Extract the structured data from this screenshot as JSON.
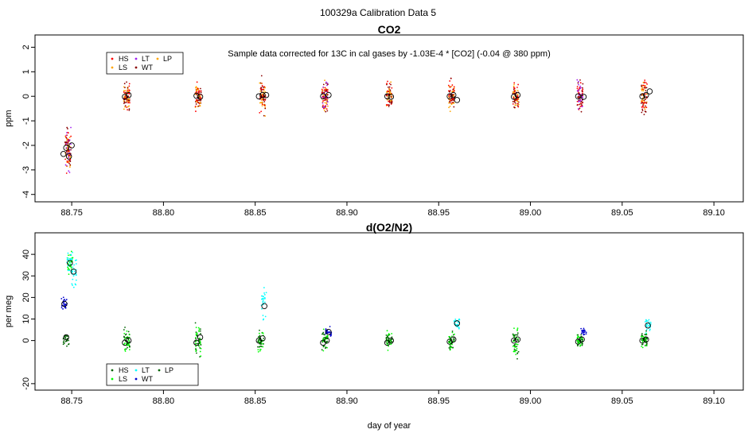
{
  "figure": {
    "suptitle": "100329a   Calibration Data 5",
    "xlabel": "day of year"
  },
  "chart_data": [
    {
      "type": "scatter",
      "title": "CO2",
      "ylabel": "ppm",
      "xlabel": "",
      "xlim": [
        88.73,
        89.116
      ],
      "ylim": [
        -4.3,
        2.5
      ],
      "xticks": [
        88.75,
        88.8,
        88.85,
        88.9,
        88.95,
        89.0,
        89.05,
        89.1
      ],
      "xtick_labels": [
        "88.75",
        "88.80",
        "88.85",
        "88.90",
        "88.95",
        "89.00",
        "89.05",
        "89.10"
      ],
      "yticks": [
        -4,
        -3,
        -2,
        -1,
        0,
        1,
        2
      ],
      "ytick_labels": [
        "-4",
        "-3",
        "-2",
        "-1",
        "0",
        "1",
        "2"
      ],
      "annotation": "Sample data corrected for 13C in cal gases by -1.03E-4 * [CO2] (-0.04 @ 380 ppm)",
      "legend": {
        "position": "top-left",
        "entries": [
          {
            "label": "HS",
            "color": "#ff0000"
          },
          {
            "label": "LT",
            "color": "#a020f0"
          },
          {
            "label": "LP",
            "color": "#ffa500"
          },
          {
            "label": "LS",
            "color": "#ffa500"
          },
          {
            "label": "WT",
            "color": "#8b0000"
          }
        ]
      },
      "clusters": [
        {
          "x": 88.748,
          "center": -2.2,
          "spread": 0.9,
          "colors": [
            "#a020f0",
            "#ff0000",
            "#ffa500",
            "#8b0000"
          ]
        },
        {
          "x": 88.78,
          "center": 0.0,
          "spread": 0.55,
          "colors": [
            "#ffa500",
            "#ff0000",
            "#8b0000"
          ]
        },
        {
          "x": 88.819,
          "center": 0.0,
          "spread": 0.6,
          "colors": [
            "#ff0000",
            "#ffa500",
            "#8b0000"
          ]
        },
        {
          "x": 88.854,
          "center": 0.0,
          "spread": 0.7,
          "colors": [
            "#ffa500",
            "#ff0000",
            "#8b0000"
          ]
        },
        {
          "x": 88.888,
          "center": 0.0,
          "spread": 0.65,
          "colors": [
            "#ff0000",
            "#a020f0",
            "#ffa500",
            "#8b0000"
          ]
        },
        {
          "x": 88.923,
          "center": 0.0,
          "spread": 0.55,
          "colors": [
            "#ff0000",
            "#ffa500",
            "#8b0000"
          ]
        },
        {
          "x": 88.957,
          "center": 0.0,
          "spread": 0.65,
          "colors": [
            "#ff0000",
            "#ffa500",
            "#8b0000"
          ]
        },
        {
          "x": 88.992,
          "center": 0.0,
          "spread": 0.55,
          "colors": [
            "#ff0000",
            "#ffa500",
            "#8b0000"
          ]
        },
        {
          "x": 89.027,
          "center": 0.0,
          "spread": 0.6,
          "colors": [
            "#ff0000",
            "#a020f0",
            "#8b0000"
          ]
        },
        {
          "x": 89.062,
          "center": 0.0,
          "spread": 0.7,
          "colors": [
            "#ffa500",
            "#ff0000",
            "#8b0000"
          ]
        }
      ],
      "means": [
        {
          "x": 88.7455,
          "y": -2.35
        },
        {
          "x": 88.747,
          "y": -2.1
        },
        {
          "x": 88.7485,
          "y": -2.45
        },
        {
          "x": 88.75,
          "y": -2.0
        },
        {
          "x": 88.779,
          "y": -0.02
        },
        {
          "x": 88.781,
          "y": 0.05
        },
        {
          "x": 88.818,
          "y": 0.02
        },
        {
          "x": 88.82,
          "y": -0.02
        },
        {
          "x": 88.852,
          "y": 0.0
        },
        {
          "x": 88.854,
          "y": 0.05
        },
        {
          "x": 88.856,
          "y": 0.05
        },
        {
          "x": 88.887,
          "y": 0.0
        },
        {
          "x": 88.89,
          "y": 0.05
        },
        {
          "x": 88.922,
          "y": 0.0
        },
        {
          "x": 88.924,
          "y": -0.02
        },
        {
          "x": 88.956,
          "y": 0.0
        },
        {
          "x": 88.958,
          "y": 0.05
        },
        {
          "x": 88.96,
          "y": -0.15
        },
        {
          "x": 88.991,
          "y": -0.02
        },
        {
          "x": 88.993,
          "y": 0.05
        },
        {
          "x": 89.026,
          "y": 0.0
        },
        {
          "x": 89.029,
          "y": -0.02
        },
        {
          "x": 89.061,
          "y": 0.0
        },
        {
          "x": 89.063,
          "y": 0.05
        },
        {
          "x": 89.065,
          "y": 0.2
        }
      ]
    },
    {
      "type": "scatter",
      "title": "d(O2/N2)",
      "ylabel": "per meg",
      "xlabel": "day of year",
      "xlim": [
        88.73,
        89.116
      ],
      "ylim": [
        -23,
        50
      ],
      "xticks": [
        88.75,
        88.8,
        88.85,
        88.9,
        88.95,
        89.0,
        89.05,
        89.1
      ],
      "xtick_labels": [
        "88.75",
        "88.80",
        "88.85",
        "88.90",
        "88.95",
        "89.00",
        "89.05",
        "89.10"
      ],
      "yticks": [
        -20,
        0,
        10,
        20,
        30,
        40
      ],
      "ytick_labels": [
        "-20",
        "0",
        "10",
        "20",
        "30",
        "40"
      ],
      "legend": {
        "position": "bottom-left",
        "entries": [
          {
            "label": "HS",
            "color": "#006400"
          },
          {
            "label": "LT",
            "color": "#00ffff"
          },
          {
            "label": "LP",
            "color": "#006400"
          },
          {
            "label": "LS",
            "color": "#00ff00"
          },
          {
            "label": "WT",
            "color": "#0000cd"
          }
        ]
      },
      "clusters": [
        {
          "x": 88.746,
          "center": 17,
          "spread": 3,
          "colors": [
            "#0000cd"
          ]
        },
        {
          "x": 88.747,
          "center": 1,
          "spread": 4,
          "colors": [
            "#006400"
          ]
        },
        {
          "x": 88.749,
          "center": 36,
          "spread": 7,
          "colors": [
            "#00ff00",
            "#00ffff"
          ]
        },
        {
          "x": 88.751,
          "center": 32,
          "spread": 8,
          "colors": [
            "#00ffff"
          ]
        },
        {
          "x": 88.78,
          "center": 0,
          "spread": 7,
          "colors": [
            "#00ff00",
            "#006400"
          ]
        },
        {
          "x": 88.819,
          "center": 0,
          "spread": 8,
          "colors": [
            "#006400",
            "#00ff00"
          ]
        },
        {
          "x": 88.853,
          "center": 0,
          "spread": 6,
          "colors": [
            "#00ff00",
            "#006400"
          ]
        },
        {
          "x": 88.855,
          "center": 17,
          "spread": 8,
          "colors": [
            "#00ffff"
          ]
        },
        {
          "x": 88.888,
          "center": 0,
          "spread": 4,
          "colors": [
            "#006400",
            "#00ff00"
          ]
        },
        {
          "x": 88.89,
          "center": 4,
          "spread": 2,
          "colors": [
            "#0000cd"
          ]
        },
        {
          "x": 88.923,
          "center": 0,
          "spread": 4,
          "colors": [
            "#00ff00",
            "#006400"
          ]
        },
        {
          "x": 88.957,
          "center": 0,
          "spread": 4,
          "colors": [
            "#00ff00",
            "#006400"
          ]
        },
        {
          "x": 88.96,
          "center": 8,
          "spread": 2.5,
          "colors": [
            "#00ffff"
          ]
        },
        {
          "x": 88.992,
          "center": 0,
          "spread": 8,
          "colors": [
            "#00ff00",
            "#006400"
          ]
        },
        {
          "x": 89.027,
          "center": 0,
          "spread": 3,
          "colors": [
            "#006400",
            "#00ff00"
          ]
        },
        {
          "x": 89.029,
          "center": 4,
          "spread": 2.5,
          "colors": [
            "#0000cd"
          ]
        },
        {
          "x": 89.062,
          "center": 0,
          "spread": 4,
          "colors": [
            "#00ff00",
            "#006400"
          ]
        },
        {
          "x": 89.064,
          "center": 7,
          "spread": 3,
          "colors": [
            "#00ffff"
          ]
        }
      ],
      "means": [
        {
          "x": 88.746,
          "y": 17
        },
        {
          "x": 88.747,
          "y": 1.5
        },
        {
          "x": 88.749,
          "y": 36
        },
        {
          "x": 88.751,
          "y": 32
        },
        {
          "x": 88.779,
          "y": -1
        },
        {
          "x": 88.781,
          "y": 0
        },
        {
          "x": 88.818,
          "y": -1
        },
        {
          "x": 88.82,
          "y": 1.5
        },
        {
          "x": 88.852,
          "y": 0
        },
        {
          "x": 88.854,
          "y": 1
        },
        {
          "x": 88.855,
          "y": 16
        },
        {
          "x": 88.887,
          "y": -1
        },
        {
          "x": 88.889,
          "y": 0
        },
        {
          "x": 88.89,
          "y": 4
        },
        {
          "x": 88.922,
          "y": -1
        },
        {
          "x": 88.924,
          "y": 0
        },
        {
          "x": 88.956,
          "y": -0.5
        },
        {
          "x": 88.958,
          "y": 0.5
        },
        {
          "x": 88.96,
          "y": 8
        },
        {
          "x": 88.991,
          "y": 0
        },
        {
          "x": 88.993,
          "y": 0.5
        },
        {
          "x": 89.026,
          "y": -0.5
        },
        {
          "x": 89.028,
          "y": 0.5
        },
        {
          "x": 89.061,
          "y": 0
        },
        {
          "x": 89.063,
          "y": 0.5
        },
        {
          "x": 89.064,
          "y": 7
        }
      ]
    }
  ]
}
